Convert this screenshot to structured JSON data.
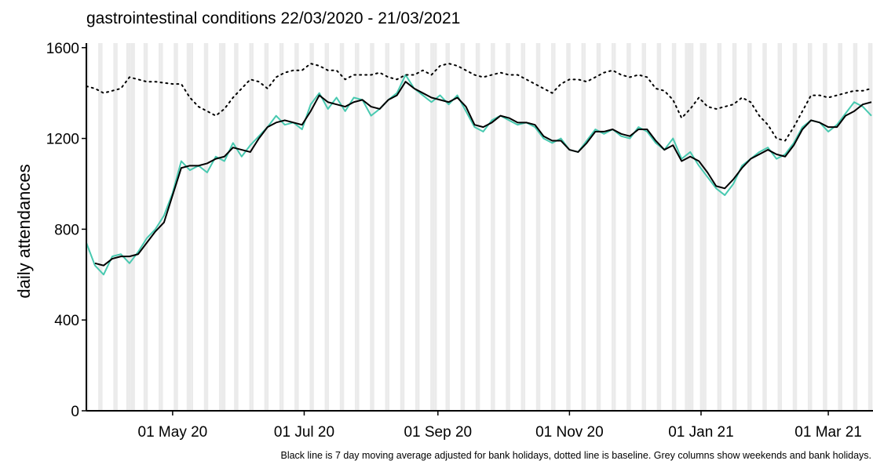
{
  "chart_data": {
    "type": "line",
    "title": "gastrointestinal conditions 22/03/2020 - 21/03/2021",
    "ylabel": "daily attendances",
    "caption": "Black line is 7 day moving average adjusted for bank holidays, dotted line is baseline. Grey columns show weekends and bank holidays.",
    "xlim": [
      "2020-03-22",
      "2021-03-21"
    ],
    "xticks": [
      {
        "value": "2020-05-01",
        "label": "01 May 20"
      },
      {
        "value": "2020-07-01",
        "label": "01 Jul 20"
      },
      {
        "value": "2020-09-01",
        "label": "01 Sep 20"
      },
      {
        "value": "2020-11-01",
        "label": "01 Nov 20"
      },
      {
        "value": "2021-01-01",
        "label": "01 Jan 21"
      },
      {
        "value": "2021-03-01",
        "label": "01 Mar 21"
      }
    ],
    "ylim": [
      0,
      1620
    ],
    "yticks": [
      0,
      400,
      800,
      1200,
      1600
    ],
    "shade_weekends": true,
    "shade_color": "#ebebeb",
    "bank_holidays": [
      "2020-04-10",
      "2020-04-13",
      "2020-05-08",
      "2020-05-25",
      "2020-08-31",
      "2020-12-25",
      "2020-12-28",
      "2021-01-01"
    ],
    "x": [
      "2020-03-22",
      "2020-03-26",
      "2020-03-30",
      "2020-04-03",
      "2020-04-07",
      "2020-04-11",
      "2020-04-15",
      "2020-04-19",
      "2020-04-23",
      "2020-04-27",
      "2020-05-01",
      "2020-05-05",
      "2020-05-09",
      "2020-05-13",
      "2020-05-17",
      "2020-05-21",
      "2020-05-25",
      "2020-05-29",
      "2020-06-02",
      "2020-06-06",
      "2020-06-10",
      "2020-06-14",
      "2020-06-18",
      "2020-06-22",
      "2020-06-26",
      "2020-06-30",
      "2020-07-04",
      "2020-07-08",
      "2020-07-12",
      "2020-07-16",
      "2020-07-20",
      "2020-07-24",
      "2020-07-28",
      "2020-08-01",
      "2020-08-05",
      "2020-08-09",
      "2020-08-13",
      "2020-08-17",
      "2020-08-21",
      "2020-08-25",
      "2020-08-29",
      "2020-09-02",
      "2020-09-06",
      "2020-09-10",
      "2020-09-14",
      "2020-09-18",
      "2020-09-22",
      "2020-09-26",
      "2020-09-30",
      "2020-10-04",
      "2020-10-08",
      "2020-10-12",
      "2020-10-16",
      "2020-10-20",
      "2020-10-24",
      "2020-10-28",
      "2020-11-01",
      "2020-11-05",
      "2020-11-09",
      "2020-11-13",
      "2020-11-17",
      "2020-11-21",
      "2020-11-25",
      "2020-11-29",
      "2020-12-03",
      "2020-12-07",
      "2020-12-11",
      "2020-12-15",
      "2020-12-19",
      "2020-12-23",
      "2020-12-27",
      "2020-12-31",
      "2021-01-04",
      "2021-01-08",
      "2021-01-12",
      "2021-01-16",
      "2021-01-20",
      "2021-01-24",
      "2021-01-28",
      "2021-02-01",
      "2021-02-05",
      "2021-02-09",
      "2021-02-13",
      "2021-02-17",
      "2021-02-21",
      "2021-02-25",
      "2021-03-01",
      "2021-03-05",
      "2021-03-09",
      "2021-03-13",
      "2021-03-17",
      "2021-03-21"
    ],
    "series": [
      {
        "color": "#48c9b0",
        "style": "solid",
        "width": 2,
        "values": [
          740,
          640,
          600,
          680,
          690,
          650,
          700,
          760,
          800,
          860,
          960,
          1100,
          1060,
          1080,
          1050,
          1120,
          1100,
          1180,
          1120,
          1170,
          1210,
          1250,
          1300,
          1260,
          1270,
          1240,
          1350,
          1400,
          1330,
          1380,
          1320,
          1380,
          1370,
          1300,
          1330,
          1370,
          1400,
          1480,
          1420,
          1390,
          1360,
          1390,
          1350,
          1390,
          1320,
          1250,
          1230,
          1280,
          1300,
          1280,
          1260,
          1270,
          1250,
          1200,
          1180,
          1200,
          1150,
          1140,
          1190,
          1240,
          1220,
          1240,
          1210,
          1200,
          1250,
          1230,
          1180,
          1150,
          1200,
          1110,
          1140,
          1080,
          1030,
          980,
          950,
          1000,
          1080,
          1110,
          1140,
          1160,
          1110,
          1130,
          1180,
          1250,
          1280,
          1270,
          1230,
          1260,
          1310,
          1360,
          1340,
          1300
        ]
      },
      {
        "color": "#000000",
        "style": "solid",
        "width": 2,
        "values": [
          null,
          650,
          640,
          670,
          680,
          680,
          690,
          740,
          790,
          830,
          950,
          1070,
          1080,
          1080,
          1090,
          1110,
          1120,
          1160,
          1150,
          1140,
          1200,
          1250,
          1270,
          1280,
          1270,
          1260,
          1320,
          1390,
          1360,
          1350,
          1340,
          1360,
          1370,
          1340,
          1330,
          1370,
          1390,
          1450,
          1420,
          1400,
          1380,
          1370,
          1360,
          1380,
          1340,
          1260,
          1250,
          1270,
          1300,
          1290,
          1270,
          1270,
          1260,
          1210,
          1190,
          1190,
          1150,
          1140,
          1180,
          1230,
          1230,
          1240,
          1220,
          1210,
          1240,
          1240,
          1190,
          1150,
          1170,
          1100,
          1120,
          1100,
          1050,
          990,
          980,
          1020,
          1070,
          1110,
          1130,
          1150,
          1130,
          1120,
          1170,
          1240,
          1280,
          1270,
          1250,
          1250,
          1300,
          1320,
          1350,
          1360
        ]
      },
      {
        "color": "#000000",
        "style": "dotted",
        "width": 2,
        "values": [
          1430,
          1420,
          1400,
          1410,
          1420,
          1470,
          1460,
          1450,
          1450,
          1445,
          1440,
          1440,
          1380,
          1340,
          1320,
          1300,
          1330,
          1380,
          1420,
          1460,
          1450,
          1420,
          1470,
          1490,
          1500,
          1500,
          1530,
          1520,
          1500,
          1500,
          1460,
          1480,
          1480,
          1480,
          1490,
          1470,
          1460,
          1480,
          1480,
          1500,
          1480,
          1520,
          1530,
          1520,
          1500,
          1480,
          1470,
          1480,
          1490,
          1480,
          1480,
          1460,
          1440,
          1420,
          1400,
          1440,
          1460,
          1460,
          1450,
          1470,
          1490,
          1500,
          1480,
          1470,
          1480,
          1470,
          1420,
          1410,
          1370,
          1290,
          1330,
          1380,
          1340,
          1330,
          1340,
          1350,
          1380,
          1360,
          1300,
          1260,
          1200,
          1190,
          1250,
          1320,
          1390,
          1390,
          1380,
          1390,
          1400,
          1410,
          1410,
          1420
        ]
      }
    ]
  }
}
